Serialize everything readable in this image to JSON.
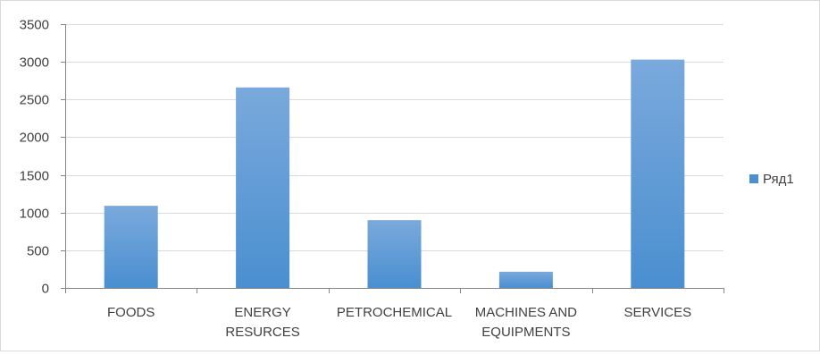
{
  "chart_data": {
    "type": "bar",
    "categories": [
      "FOODS",
      "ENERGY RESURCES",
      "PETROCHEMICAL",
      "MACHINES AND EQUIPMENTS",
      "SERVICES"
    ],
    "category_label_lines": [
      [
        "FOODS"
      ],
      [
        "ENERGY",
        "RESURCES"
      ],
      [
        "PETROCHEMICAL"
      ],
      [
        "MACHINES AND",
        "EQUIPMENTS"
      ],
      [
        "SERVICES"
      ]
    ],
    "series": [
      {
        "name": "Ряд1",
        "values": [
          1090,
          2660,
          900,
          215,
          3030
        ]
      }
    ],
    "ylim": [
      0,
      3500
    ],
    "yticks": [
      0,
      500,
      1000,
      1500,
      2000,
      2500,
      3000,
      3500
    ],
    "grid": true,
    "legend_position": "right",
    "colors": {
      "bar_top": "#7aa9dc",
      "bar_bottom": "#4a8fd0",
      "grid": "#d9d9d9",
      "axis": "#868686",
      "text": "#404040"
    }
  }
}
